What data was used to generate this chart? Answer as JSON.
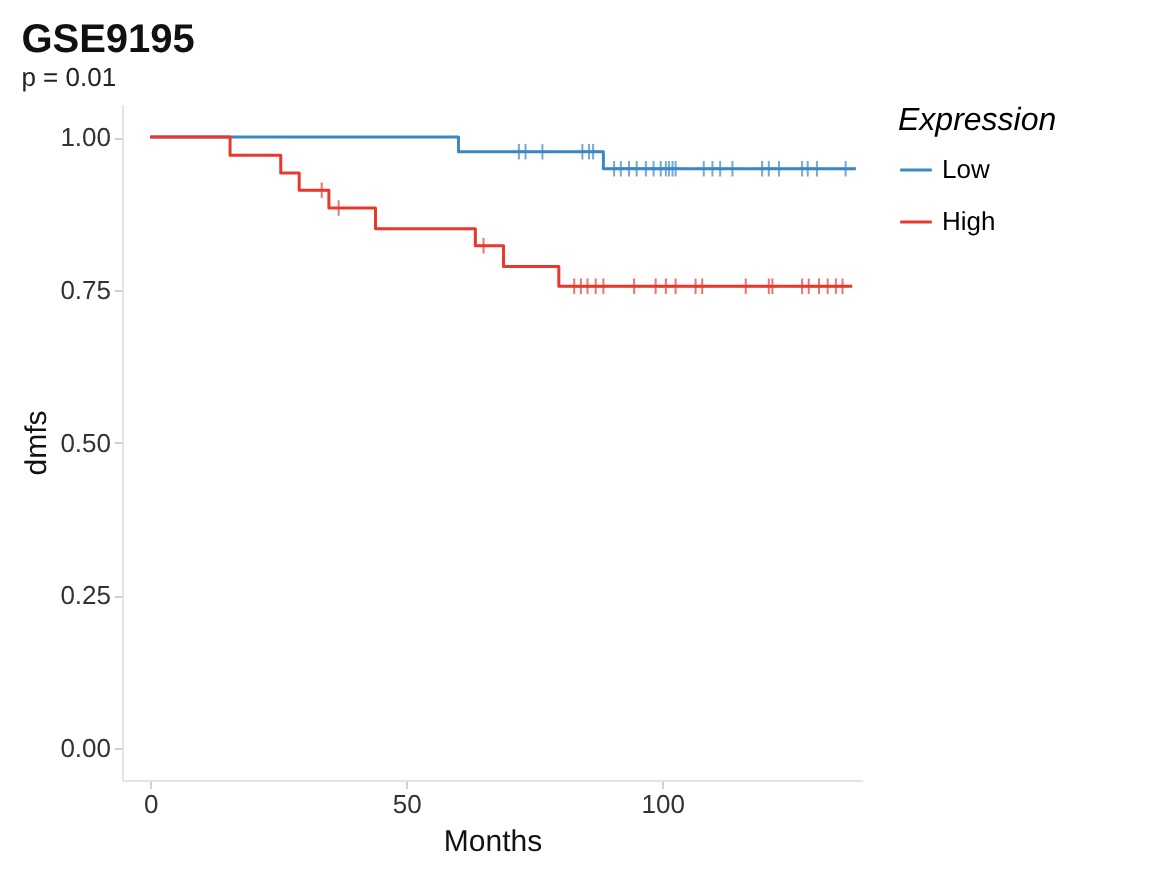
{
  "chart_data": {
    "type": "step",
    "title": "GSE9195",
    "subtitle": "p = 0.01",
    "xlabel": "Months",
    "ylabel": "dmfs",
    "legend_title": "Expression",
    "legend": "right",
    "grid": false,
    "xlim": [
      -5.5,
      139
    ],
    "ylim": [
      -0.052,
      1.054
    ],
    "xticks": [
      0,
      50,
      100
    ],
    "yticks": [
      {
        "value": 0,
        "label": "0.00"
      },
      {
        "value": 0.25,
        "label": "0.25"
      },
      {
        "value": 0.5,
        "label": "0.50"
      },
      {
        "value": 0.75,
        "label": "0.75"
      },
      {
        "value": 1,
        "label": "1.00"
      }
    ],
    "series": [
      {
        "name": "Low",
        "color": "#3b87c4",
        "x": [
          0,
          60.2,
          88.5,
          137.8
        ],
        "values": [
          1,
          0.976,
          0.948,
          0.948
        ]
      },
      {
        "name": "High",
        "color": "#e8382d",
        "x": [
          0,
          15.6,
          25.5,
          29.1,
          34.9,
          44,
          63.5,
          69,
          79.8,
          137.1
        ],
        "values": [
          1,
          0.97,
          0.941,
          0.913,
          0.884,
          0.85,
          0.822,
          0.788,
          0.756,
          0.756
        ]
      },
      {
        "type": "scatter",
        "marker": "cross",
        "color": "#3b87c4",
        "x": [
          72.0,
          73.3,
          76.6,
          84.4,
          85.7,
          86.5,
          90.6,
          91.9,
          93.5,
          95.0,
          96.8,
          98.3,
          99.7,
          100.7,
          101.3,
          102.0,
          102.6,
          108.1,
          109.8,
          111.3,
          113.7,
          119.5,
          120.8,
          122.8,
          127.3,
          128.4,
          130.2,
          135.8
        ],
        "values": [
          0.976,
          0.976,
          0.976,
          0.976,
          0.976,
          0.976,
          0.948,
          0.948,
          0.948,
          0.948,
          0.948,
          0.948,
          0.948,
          0.948,
          0.948,
          0.948,
          0.948,
          0.948,
          0.948,
          0.948,
          0.948,
          0.948,
          0.948,
          0.948,
          0.948,
          0.948,
          0.948,
          0.948
        ]
      },
      {
        "type": "scatter",
        "marker": "cross",
        "color": "#e8382d",
        "x": [
          33.5,
          36.8,
          65.1,
          82.8,
          84.1,
          85.4,
          87.0,
          88.5,
          94.5,
          98.7,
          100.7,
          102.6,
          106.5,
          107.8,
          116.3,
          120.8,
          121.5,
          127.3,
          128.6,
          130.6,
          132.3,
          133.9,
          135.2
        ],
        "values": [
          0.913,
          0.884,
          0.822,
          0.756,
          0.756,
          0.756,
          0.756,
          0.756,
          0.756,
          0.756,
          0.756,
          0.756,
          0.756,
          0.756,
          0.756,
          0.756,
          0.756,
          0.756,
          0.756,
          0.756,
          0.756,
          0.756,
          0.756
        ]
      }
    ]
  }
}
